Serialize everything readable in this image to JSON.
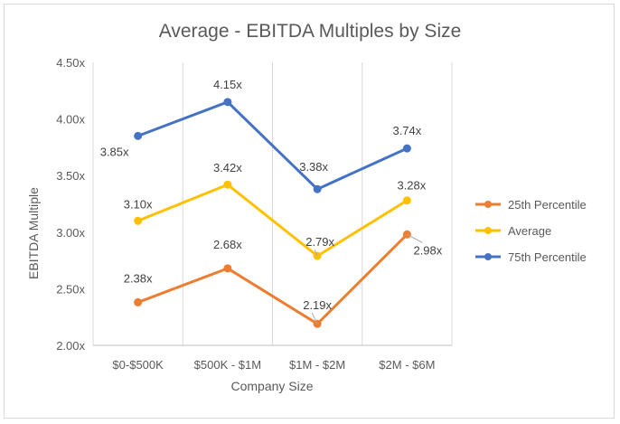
{
  "chart_data": {
    "type": "line",
    "title": "Average - EBITDA Multiples by Size",
    "xlabel": "Company Size",
    "ylabel": "EBITDA Multiple",
    "categories": [
      "$0-$500K",
      "$500K - $1M",
      "$1M - $2M",
      "$2M - $6M"
    ],
    "ylim": [
      2.0,
      4.5
    ],
    "yticks": [
      2.0,
      2.5,
      3.0,
      3.5,
      4.0,
      4.5
    ],
    "ytick_labels": [
      "2.00x",
      "2.50x",
      "3.00x",
      "3.50x",
      "4.00x",
      "4.50x"
    ],
    "grid": "vertical category dividers",
    "legend_position": "right",
    "series": [
      {
        "name": "25th Percentile",
        "color": "#ed7d31",
        "values": [
          2.38,
          2.68,
          2.19,
          2.98
        ],
        "labels": [
          "2.38x",
          "2.68x",
          "2.19x",
          "2.98x"
        ]
      },
      {
        "name": "Average",
        "color": "#ffc000",
        "values": [
          3.1,
          3.42,
          2.79,
          3.28
        ],
        "labels": [
          "3.10x",
          "3.42x",
          "2.79x",
          "3.28x"
        ]
      },
      {
        "name": "75th Percentile",
        "color": "#4472c4",
        "values": [
          3.85,
          4.15,
          3.38,
          3.74
        ],
        "labels": [
          "3.85x",
          "4.15x",
          "3.38x",
          "3.74x"
        ]
      }
    ]
  }
}
